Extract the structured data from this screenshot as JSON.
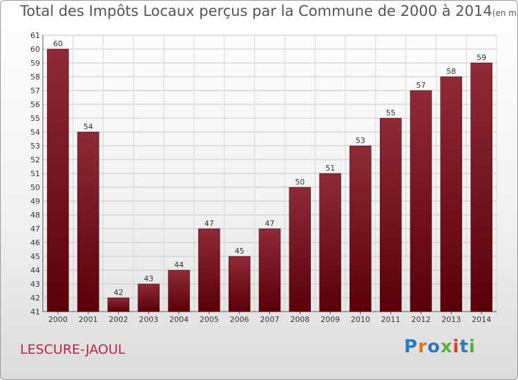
{
  "title": "Total des Impôts Locaux perçus par la Commune de 2000 à 2014",
  "unit_note": "(en milliers d'€)",
  "commune": "LESCURE-JAOUL",
  "logo": {
    "text": "Proxiti",
    "colors": [
      "#2b79c2",
      "#e8731b",
      "#2b79c2",
      "#5cae38",
      "#e23b2f",
      "#2b79c2",
      "#5cae38"
    ]
  },
  "chart_data": {
    "type": "bar",
    "title": "Total des Impôts Locaux perçus par la Commune de 2000 à 2014",
    "xlabel": "",
    "ylabel": "",
    "categories": [
      "2000",
      "2001",
      "2002",
      "2003",
      "2004",
      "2005",
      "2006",
      "2007",
      "2008",
      "2009",
      "2010",
      "2011",
      "2012",
      "2013",
      "2014"
    ],
    "values": [
      60,
      54,
      42,
      43,
      44,
      47,
      45,
      47,
      50,
      51,
      53,
      55,
      57,
      58,
      59
    ],
    "ylim": [
      41,
      61
    ],
    "yticks": [
      41,
      42,
      43,
      44,
      45,
      46,
      47,
      48,
      49,
      50,
      51,
      52,
      53,
      54,
      55,
      56,
      57,
      58,
      59,
      60,
      61
    ],
    "grid": true,
    "bar_color": "#7a0d1a"
  }
}
